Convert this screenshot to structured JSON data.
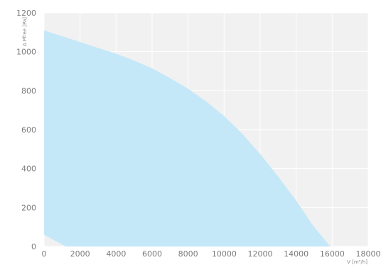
{
  "chart_data": {
    "type": "area",
    "title": "",
    "xlabel": "V [m³/h]",
    "ylabel": "Δ Pfree [Pa]",
    "xlim": [
      0,
      18000
    ],
    "ylim": [
      0,
      1200
    ],
    "x_ticks": [
      "0",
      "2000",
      "4000",
      "6000",
      "8000",
      "10000",
      "12000",
      "14000",
      "16000",
      "18000"
    ],
    "y_ticks": [
      "0",
      "200",
      "400",
      "600",
      "800",
      "1000",
      "1200"
    ],
    "grid": true,
    "colors": {
      "fill": "#c5e8f8",
      "plot_bg": "#f1f1f1",
      "grid": "#ffffff",
      "tick_text": "#7a7a7a"
    },
    "series": [
      {
        "upper": {
          "x": [
            0,
            1000,
            2000,
            3000,
            4000,
            5000,
            6000,
            7000,
            8000,
            9000,
            10000,
            11000,
            12000,
            13000,
            14000,
            15000,
            15900
          ],
          "y": [
            1110,
            1080,
            1050,
            1020,
            990,
            955,
            915,
            865,
            810,
            745,
            670,
            580,
            475,
            360,
            235,
            100,
            0
          ]
        },
        "lower": {
          "x": [
            0,
            1200
          ],
          "y": [
            60,
            0
          ]
        }
      }
    ]
  }
}
